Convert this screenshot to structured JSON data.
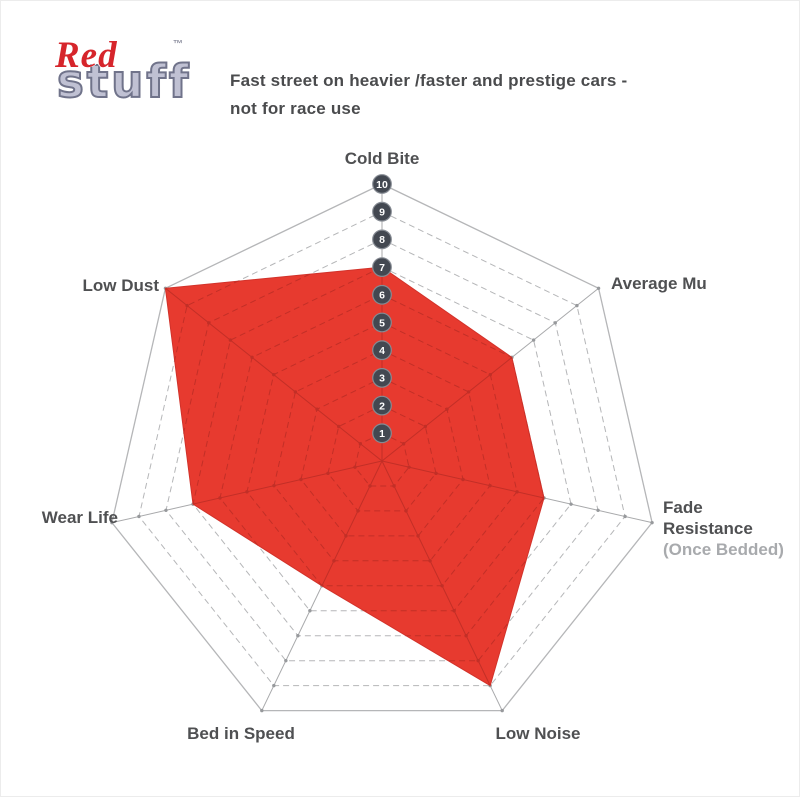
{
  "logo": {
    "brand_red": "Red",
    "brand_stuff": "stuff",
    "trademark": "™"
  },
  "header": {
    "description_line1": "Fast street on heavier /faster and prestige cars -",
    "description_line2": "not for race use"
  },
  "chart_data": {
    "type": "radar",
    "categories": [
      "Cold Bite",
      "Average Mu",
      "Fade Resistance (Once Bedded)",
      "Low Noise",
      "Bed in Speed",
      "Wear Life",
      "Low Dust"
    ],
    "values": [
      7,
      6,
      6,
      9,
      5,
      7,
      10
    ],
    "scale": {
      "min": 0,
      "max": 10,
      "ticks": [
        "1",
        "2",
        "3",
        "4",
        "5",
        "6",
        "7",
        "8",
        "9",
        "10"
      ]
    },
    "grid": {
      "rings": 10,
      "ring_style": "dashed",
      "outer_ring_style": "solid",
      "start": "top",
      "direction": "clockwise"
    },
    "colors": {
      "data_fill": "#e73a2f",
      "data_edge": "#d2322a",
      "grid_over_data": "#c22f27",
      "grid_line": "#b5b6b8",
      "spoke_line": "#a8a9ab",
      "grid_dot": "#97999c",
      "tick_circle_fill": "#434851",
      "tick_circle_edge": "#868b93",
      "tick_text": "#ffffff",
      "label_text": "#4f5052",
      "label_muted": "#a8aaad"
    }
  },
  "axis_labels": {
    "cold_bite": "Cold Bite",
    "average_mu": "Average Mu",
    "fade_resistance_line1": "Fade",
    "fade_resistance_line2": "Resistance",
    "fade_resistance_line3": "(Once Bedded)",
    "low_noise": "Low Noise",
    "bed_in_speed": "Bed in Speed",
    "wear_life": "Wear Life",
    "low_dust": "Low Dust"
  }
}
